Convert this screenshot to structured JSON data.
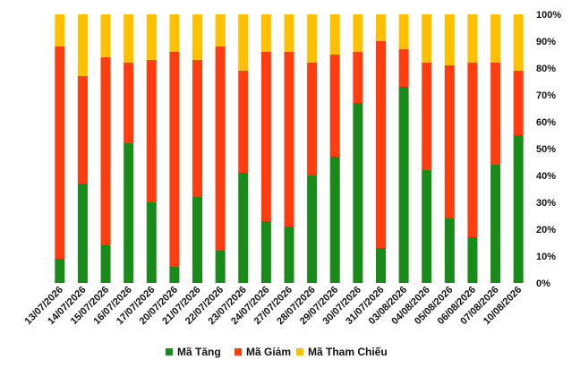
{
  "chart_data": {
    "type": "bar",
    "stacked": true,
    "percent_stacked": true,
    "title": "",
    "xlabel": "",
    "ylabel": "",
    "ylim": [
      0,
      100
    ],
    "yticks": [
      0,
      10,
      20,
      30,
      40,
      50,
      60,
      70,
      80,
      90,
      100
    ],
    "yticklabels": [
      "0%",
      "10%",
      "20%",
      "30%",
      "40%",
      "50%",
      "60%",
      "70%",
      "80%",
      "90%",
      "100%"
    ],
    "y_axis_position": "right",
    "grid": false,
    "legend_position": "bottom",
    "categories": [
      "13/07/2026",
      "14/07/2026",
      "15/07/2026",
      "16/07/2026",
      "17/07/2026",
      "20/07/2026",
      "21/07/2026",
      "22/07/2026",
      "23/07/2026",
      "24/07/2026",
      "27/07/2026",
      "28/07/2026",
      "29/07/2026",
      "30/07/2026",
      "31/07/2026",
      "03/08/2026",
      "04/08/2026",
      "05/08/2026",
      "06/08/2026",
      "07/08/2026",
      "10/08/2026"
    ],
    "series": [
      {
        "name": "Mã Tăng",
        "color": "#1a8a1a",
        "values": [
          9,
          37,
          14,
          52,
          30,
          6,
          32,
          12,
          41,
          23,
          21,
          40,
          47,
          67,
          13,
          73,
          42,
          24,
          17,
          44,
          55
        ]
      },
      {
        "name": "Mã Giảm",
        "color": "#ff3d0f",
        "values": [
          79,
          40,
          70,
          30,
          53,
          80,
          51,
          76,
          38,
          63,
          65,
          42,
          38,
          19,
          77,
          14,
          40,
          57,
          65,
          38,
          24
        ]
      },
      {
        "name": "Mã Tham Chiếu",
        "color": "#ffc000",
        "values": [
          12,
          23,
          16,
          18,
          17,
          14,
          17,
          12,
          21,
          14,
          14,
          18,
          15,
          14,
          10,
          13,
          18,
          19,
          18,
          18,
          21
        ]
      }
    ]
  }
}
